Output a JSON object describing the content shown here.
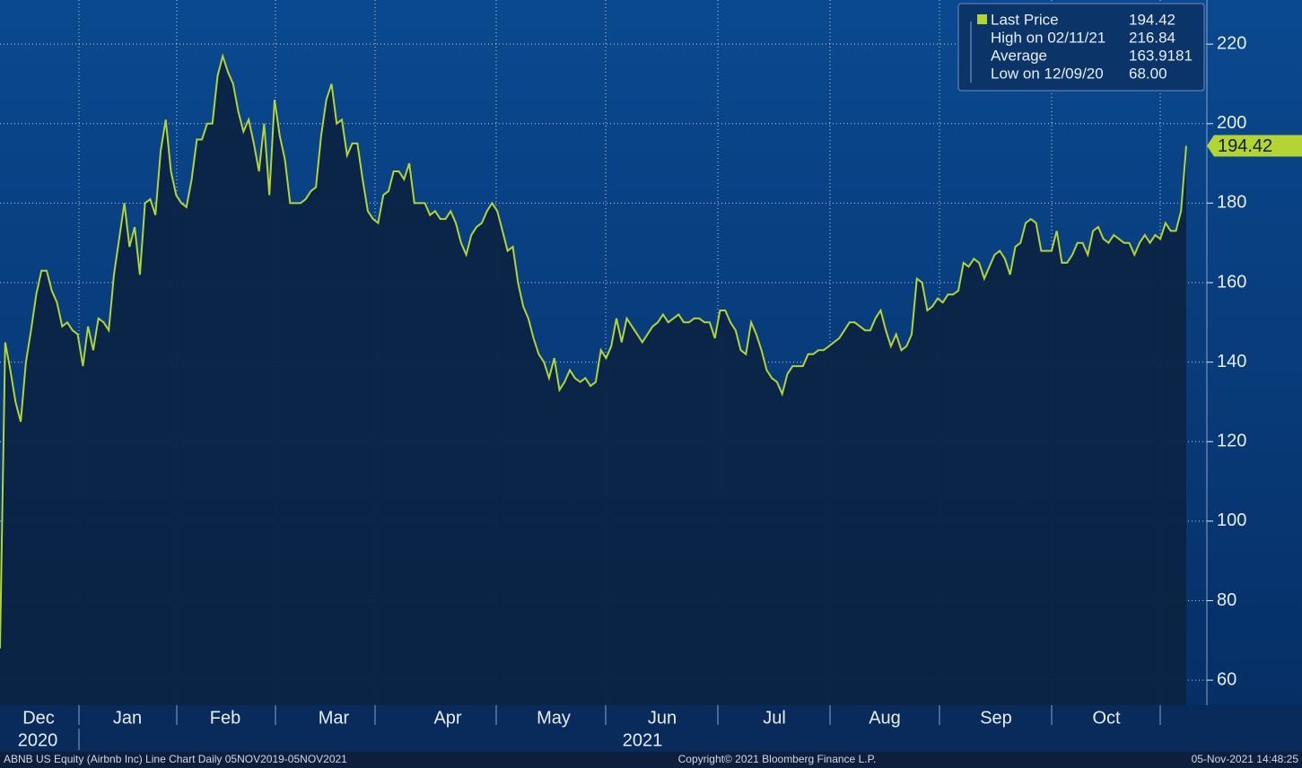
{
  "chart_data": {
    "type": "line",
    "series": [
      {
        "name": "Last Price",
        "color": "#b4d334",
        "values": [
          68,
          145,
          138,
          130,
          125,
          140,
          148,
          157,
          163,
          163,
          158,
          155,
          149,
          150,
          148,
          147,
          139,
          149,
          143,
          151,
          150,
          148,
          162,
          171,
          180,
          169,
          174,
          162,
          180,
          181,
          177,
          193,
          201,
          188,
          182,
          180,
          179,
          186,
          196,
          196,
          200,
          200,
          212,
          217,
          213,
          210,
          203,
          198,
          201,
          195,
          188,
          200,
          182,
          206,
          197,
          191,
          180,
          180,
          180,
          181,
          183,
          184,
          197,
          206,
          210,
          200,
          201,
          192,
          195,
          195,
          186,
          178,
          176,
          175,
          182,
          183,
          188,
          188,
          186,
          190,
          180,
          180,
          180,
          177,
          178,
          176,
          176,
          178,
          175,
          170,
          167,
          172,
          174,
          175,
          178,
          180,
          178,
          173,
          168,
          169,
          160,
          154,
          151,
          146,
          142,
          140,
          136,
          141,
          133,
          135,
          138,
          136,
          135,
          136,
          134,
          135,
          143,
          141,
          144,
          151,
          145,
          151,
          149,
          147,
          145,
          147,
          149,
          150,
          152,
          150,
          151,
          152,
          150,
          150,
          151,
          151,
          150,
          150,
          146,
          153,
          153,
          150,
          148,
          143,
          142,
          150,
          147,
          143,
          138,
          136,
          135,
          132,
          137,
          139,
          139,
          139,
          142,
          142,
          143,
          143,
          144,
          145,
          146,
          148,
          150,
          150,
          149,
          148,
          148,
          151,
          153,
          148,
          144,
          147,
          143,
          144,
          147,
          161,
          160,
          153,
          154,
          156,
          155,
          157,
          157,
          158,
          165,
          164,
          166,
          165,
          161,
          164,
          167,
          168,
          166,
          162,
          169,
          170,
          175,
          176,
          175,
          168,
          168,
          168,
          173,
          165,
          165,
          167,
          170,
          170,
          167,
          173,
          174,
          171,
          170,
          172,
          171,
          170,
          170,
          167,
          170,
          172,
          170,
          172,
          171,
          175,
          173,
          173,
          178,
          194.42
        ]
      }
    ],
    "legend_stats": [
      {
        "label": "Last Price",
        "value": 194.42
      },
      {
        "label": "High on 02/11/21",
        "value": 216.84
      },
      {
        "label": "Average",
        "value": 163.9181
      },
      {
        "label": "Low on 12/09/20",
        "value": 68,
        "value_label": "68.00"
      }
    ],
    "months": [
      "Dec",
      "Jan",
      "Feb",
      "Mar",
      "Apr",
      "May",
      "Jun",
      "Jul",
      "Aug",
      "Sep",
      "Oct"
    ],
    "years": [
      "2020",
      "2021"
    ],
    "ylim": [
      53.7,
      231.1
    ],
    "yticks": [
      60,
      80,
      100,
      120,
      140,
      160,
      180,
      200,
      220
    ],
    "grid": true,
    "footer": {
      "left": "ABNB US Equity (Airbnb Inc) Line Chart  Daily 05NOV2019-05NOV2021",
      "center": "Copyright© 2021 Bloomberg Finance L.P.",
      "right": "05-Nov-2021 14:48:25"
    }
  }
}
